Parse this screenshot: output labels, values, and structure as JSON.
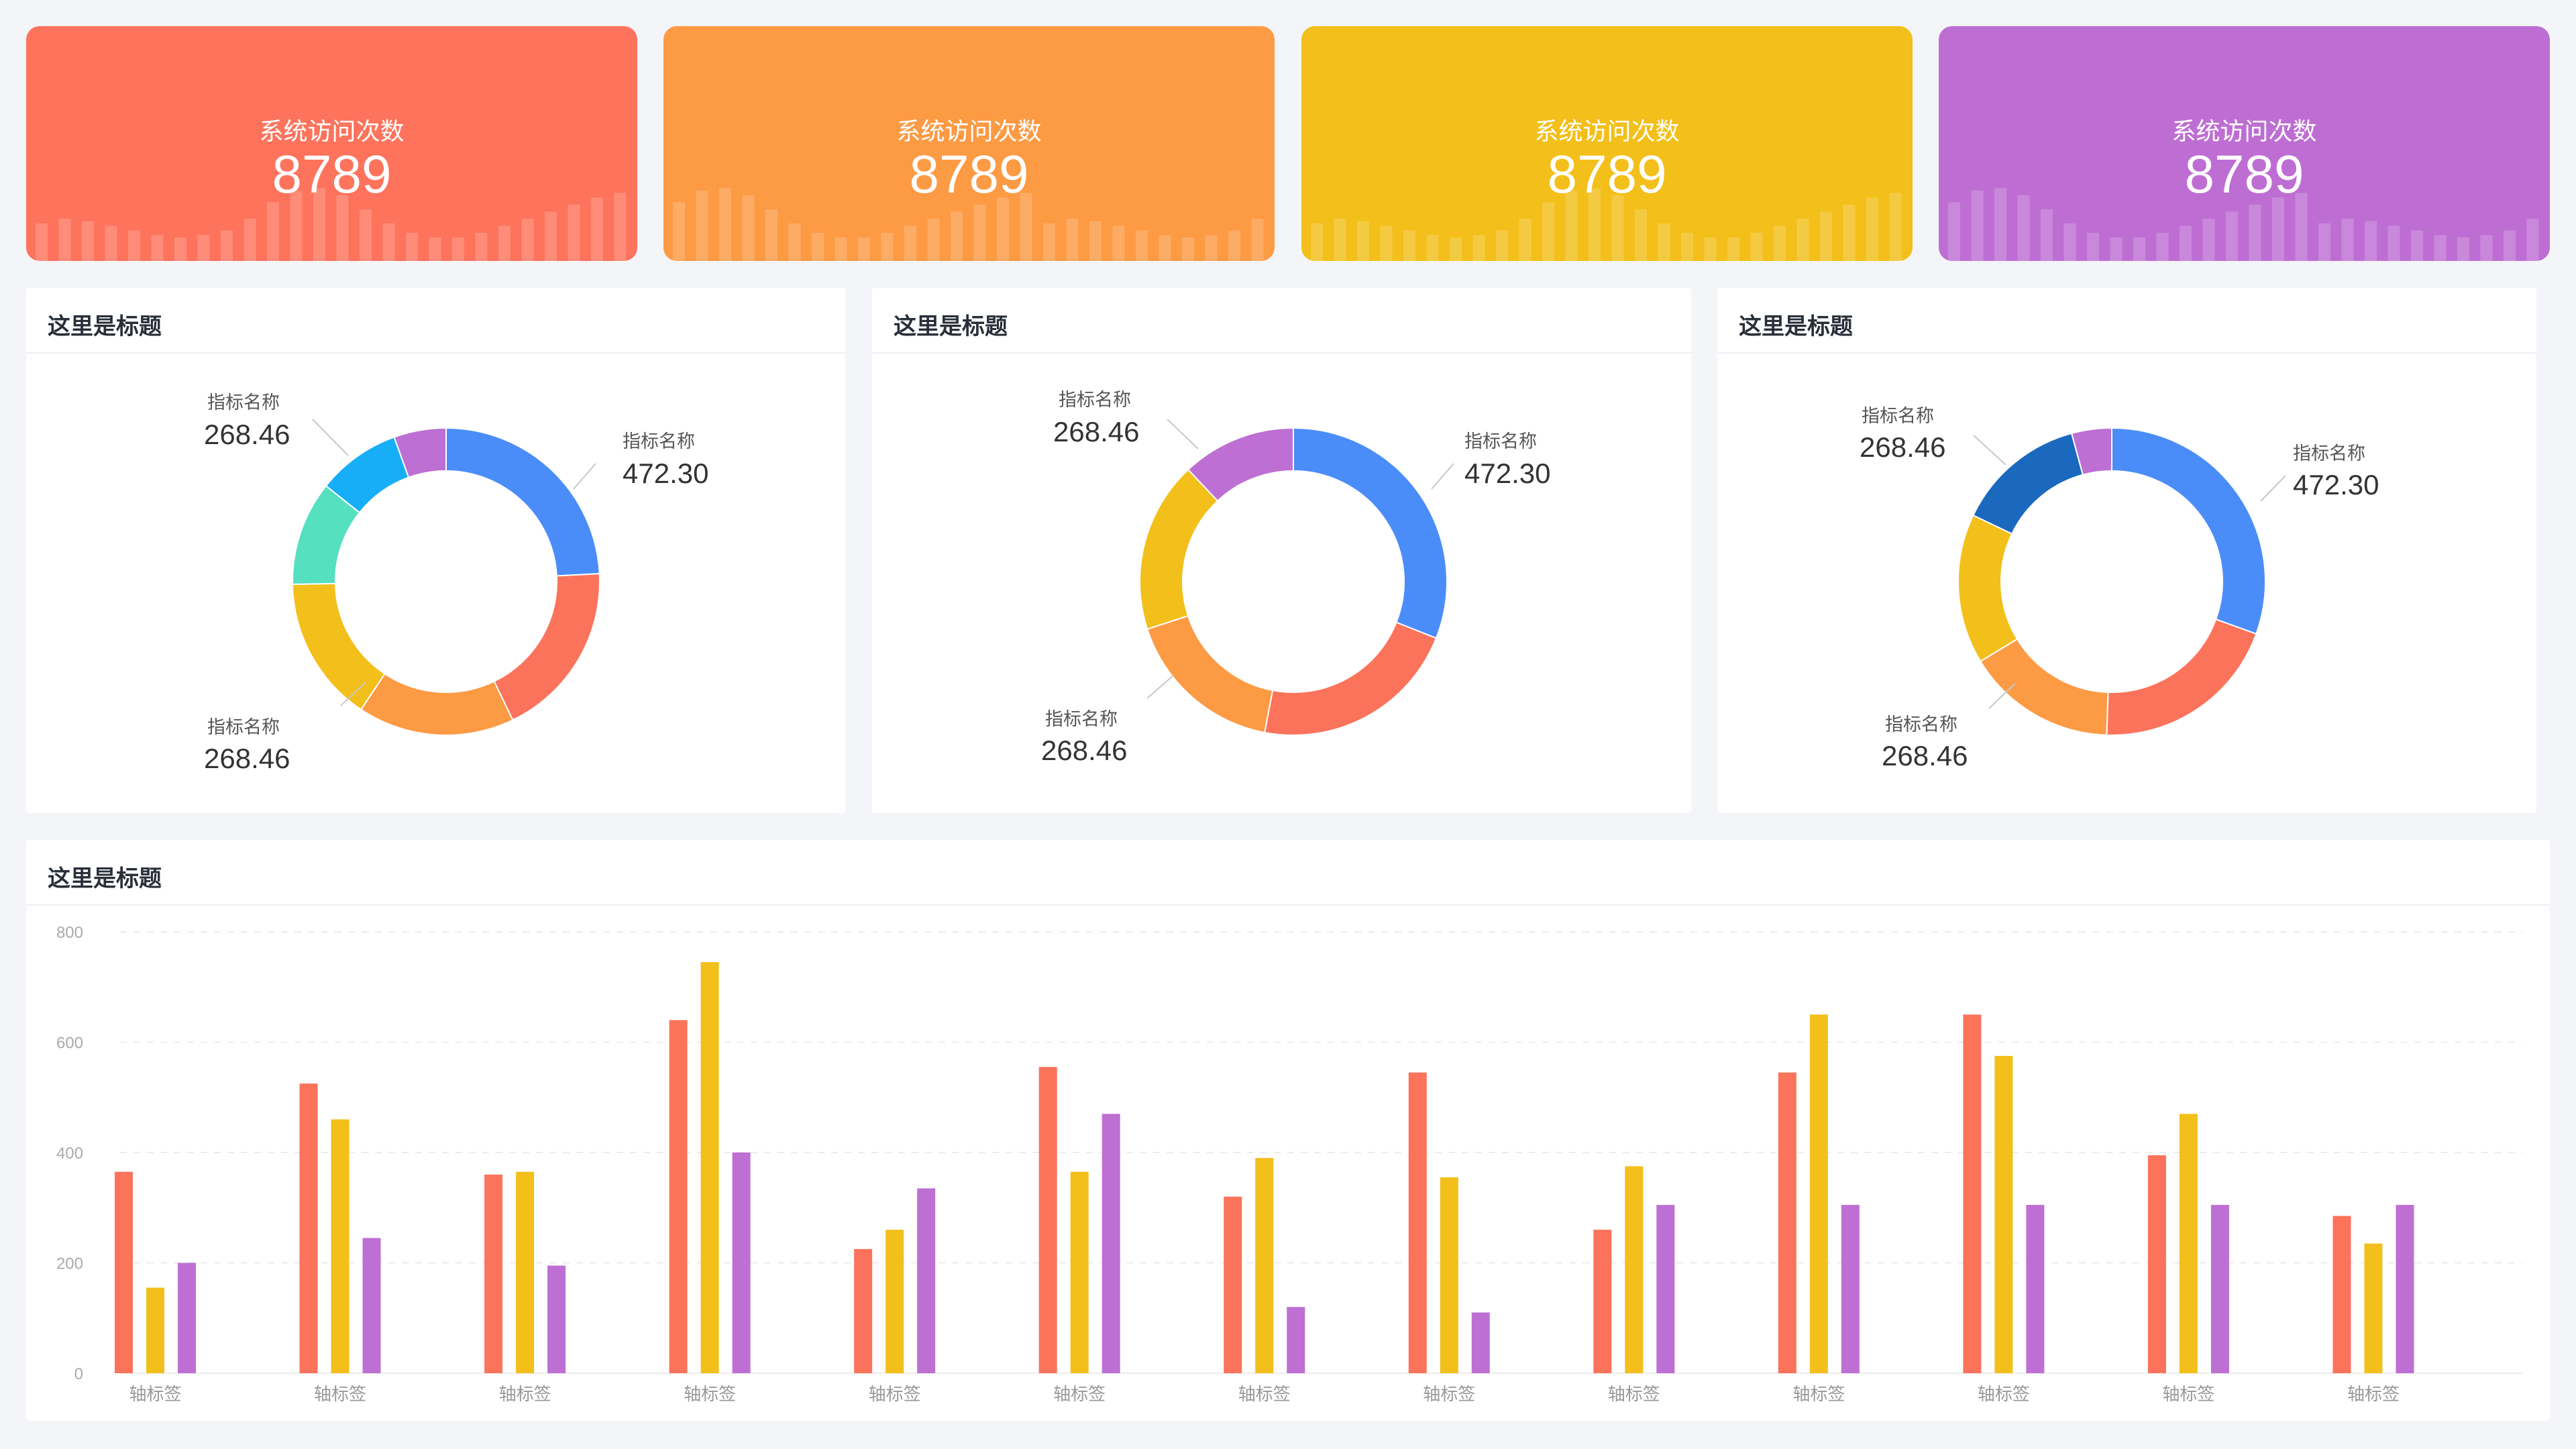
{
  "colors": {
    "red": "#fb735b",
    "orange": "#fd9a44",
    "yellow": "#f3bf1a",
    "purple": "#bd6fd3",
    "blue": "#4b8df8",
    "cyan": "#17aef8",
    "teal": "#55e0c0",
    "navy": "#1a69be"
  },
  "stat_cards": [
    {
      "label": "系统访问次数",
      "value": "8789",
      "color": "#fe735c"
    },
    {
      "label": "系统访问次数",
      "value": "8789",
      "color": "#fd9a44"
    },
    {
      "label": "系统访问次数",
      "value": "8789",
      "color": "#f3bf1a"
    },
    {
      "label": "系统访问次数",
      "value": "8789",
      "color": "#be6ed3"
    }
  ],
  "donut_panels": [
    {
      "title": "这里是标题",
      "labels": [
        {
          "name": "指标名称",
          "value": "268.46"
        },
        {
          "name": "指标名称",
          "value": "472.30"
        },
        {
          "name": "指标名称",
          "value": "268.46"
        }
      ],
      "slices": [
        {
          "value": 22,
          "color": "#4b8df8"
        },
        {
          "value": 17,
          "color": "#fb735b"
        },
        {
          "value": 15,
          "color": "#fd9a44"
        },
        {
          "value": 14,
          "color": "#f3bf1a"
        },
        {
          "value": 10,
          "color": "#55e0c0"
        },
        {
          "value": 8,
          "color": "#17aef8"
        },
        {
          "value": 5,
          "color": "#bd6fd3"
        }
      ]
    },
    {
      "title": "这里是标题",
      "labels": [
        {
          "name": "指标名称",
          "value": "268.46"
        },
        {
          "name": "指标名称",
          "value": "472.30"
        },
        {
          "name": "指标名称",
          "value": "268.46"
        }
      ],
      "slices": [
        {
          "value": 31,
          "color": "#4b8df8"
        },
        {
          "value": 22,
          "color": "#fb735b"
        },
        {
          "value": 17,
          "color": "#fd9a44"
        },
        {
          "value": 18,
          "color": "#f3bf1a"
        },
        {
          "value": 12,
          "color": "#bd6fd3"
        }
      ]
    },
    {
      "title": "这里是标题",
      "labels": [
        {
          "name": "指标名称",
          "value": "268.46"
        },
        {
          "name": "指标名称",
          "value": "472.30"
        },
        {
          "name": "指标名称",
          "value": "268.46"
        }
      ],
      "slices": [
        {
          "value": 29,
          "color": "#4b8df8"
        },
        {
          "value": 19,
          "color": "#fb735b"
        },
        {
          "value": 15,
          "color": "#fd9a44"
        },
        {
          "value": 15,
          "color": "#f3bf1a"
        },
        {
          "value": 13,
          "color": "#1a69be"
        },
        {
          "value": 4,
          "color": "#bd6fd3"
        }
      ]
    }
  ],
  "bar_panel": {
    "title": "这里是标题"
  },
  "chart_data": {
    "type": "bar",
    "categories": [
      "轴标签",
      "轴标签",
      "轴标签",
      "轴标签",
      "轴标签",
      "轴标签",
      "轴标签",
      "轴标签",
      "轴标签",
      "轴标签",
      "轴标签",
      "轴标签",
      "轴标签"
    ],
    "ylim": [
      0,
      800
    ],
    "yticks": [
      0,
      200,
      400,
      600,
      800
    ],
    "grid": true,
    "series": [
      {
        "color": "#fb735b",
        "values": [
          365,
          525,
          360,
          640,
          225,
          555,
          320,
          545,
          260,
          545,
          650,
          395,
          285
        ]
      },
      {
        "color": "#f3bf1a",
        "values": [
          155,
          460,
          365,
          745,
          260,
          365,
          390,
          355,
          375,
          650,
          575,
          470,
          235
        ]
      },
      {
        "color": "#bd6fd3",
        "values": [
          200,
          245,
          195,
          400,
          335,
          470,
          120,
          110,
          305,
          305,
          305,
          305,
          305
        ]
      }
    ]
  }
}
